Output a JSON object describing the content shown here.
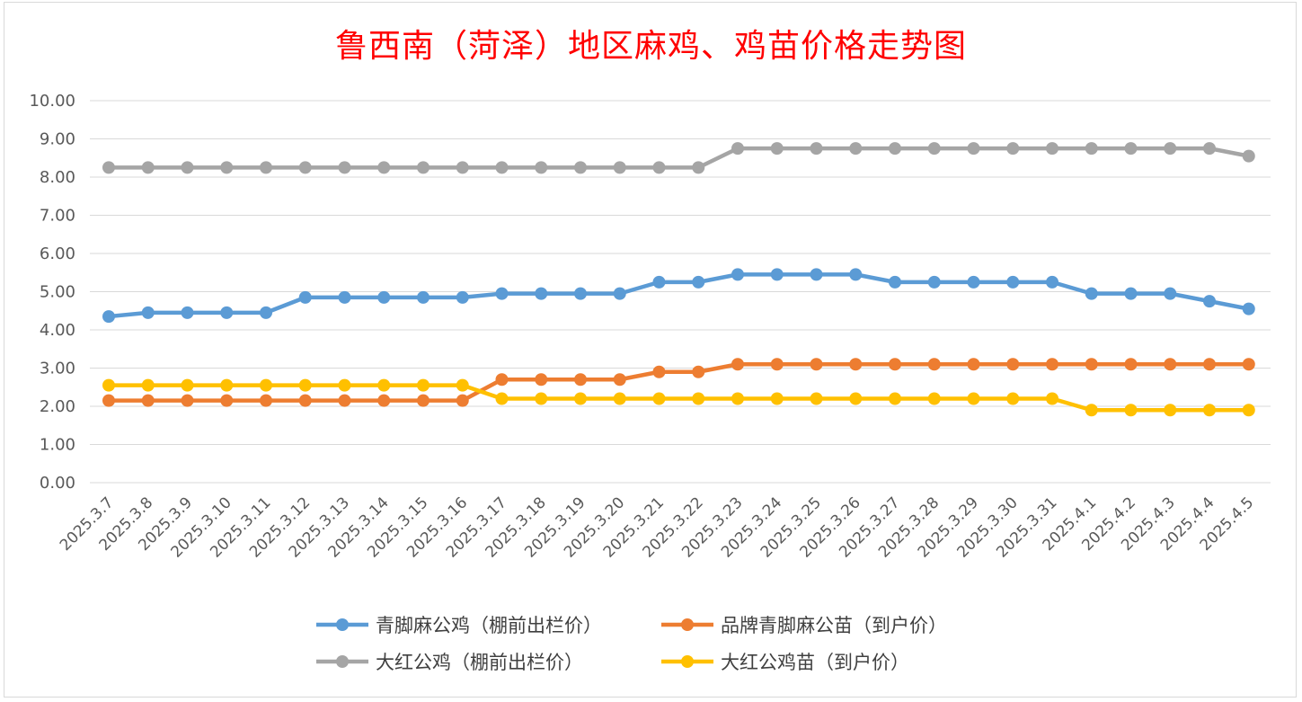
{
  "chart_data": {
    "type": "line",
    "title": "鲁西南（菏泽）地区麻鸡、鸡苗价格走势图",
    "xlabel": "",
    "ylabel": "",
    "ylim": [
      0,
      10
    ],
    "yticks": [
      "0.00",
      "1.00",
      "2.00",
      "3.00",
      "4.00",
      "5.00",
      "6.00",
      "7.00",
      "8.00",
      "9.00",
      "10.00"
    ],
    "grid": true,
    "legend_position": "bottom",
    "categories": [
      "2025.3.7",
      "2025.3.8",
      "2025.3.9",
      "2025.3.10",
      "2025.3.11",
      "2025.3.12",
      "2025.3.13",
      "2025.3.14",
      "2025.3.15",
      "2025.3.16",
      "2025.3.17",
      "2025.3.18",
      "2025.3.19",
      "2025.3.20",
      "2025.3.21",
      "2025.3.22",
      "2025.3.23",
      "2025.3.24",
      "2025.3.25",
      "2025.3.26",
      "2025.3.27",
      "2025.3.28",
      "2025.3.29",
      "2025.3.30",
      "2025.3.31",
      "2025.4.1",
      "2025.4.2",
      "2025.4.3",
      "2025.4.4",
      "2025.4.5"
    ],
    "series": [
      {
        "name": "青脚麻公鸡（棚前出栏价）",
        "color": "#5b9bd5",
        "values": [
          4.35,
          4.45,
          4.45,
          4.45,
          4.45,
          4.85,
          4.85,
          4.85,
          4.85,
          4.85,
          4.95,
          4.95,
          4.95,
          4.95,
          5.25,
          5.25,
          5.45,
          5.45,
          5.45,
          5.45,
          5.25,
          5.25,
          5.25,
          5.25,
          5.25,
          4.95,
          4.95,
          4.95,
          4.75,
          4.55
        ]
      },
      {
        "name": "品牌青脚麻公苗（到户价）",
        "color": "#ed7d31",
        "values": [
          2.15,
          2.15,
          2.15,
          2.15,
          2.15,
          2.15,
          2.15,
          2.15,
          2.15,
          2.15,
          2.7,
          2.7,
          2.7,
          2.7,
          2.9,
          2.9,
          3.1,
          3.1,
          3.1,
          3.1,
          3.1,
          3.1,
          3.1,
          3.1,
          3.1,
          3.1,
          3.1,
          3.1,
          3.1,
          3.1
        ]
      },
      {
        "name": "大红公鸡（棚前出栏价）",
        "color": "#a5a5a5",
        "values": [
          8.25,
          8.25,
          8.25,
          8.25,
          8.25,
          8.25,
          8.25,
          8.25,
          8.25,
          8.25,
          8.25,
          8.25,
          8.25,
          8.25,
          8.25,
          8.25,
          8.75,
          8.75,
          8.75,
          8.75,
          8.75,
          8.75,
          8.75,
          8.75,
          8.75,
          8.75,
          8.75,
          8.75,
          8.75,
          8.55
        ]
      },
      {
        "name": "大红公鸡苗（到户价）",
        "color": "#ffc000",
        "values": [
          2.55,
          2.55,
          2.55,
          2.55,
          2.55,
          2.55,
          2.55,
          2.55,
          2.55,
          2.55,
          2.2,
          2.2,
          2.2,
          2.2,
          2.2,
          2.2,
          2.2,
          2.2,
          2.2,
          2.2,
          2.2,
          2.2,
          2.2,
          2.2,
          2.2,
          1.9,
          1.9,
          1.9,
          1.9,
          1.9
        ]
      }
    ],
    "legend_order": [
      0,
      1,
      2,
      3
    ]
  }
}
